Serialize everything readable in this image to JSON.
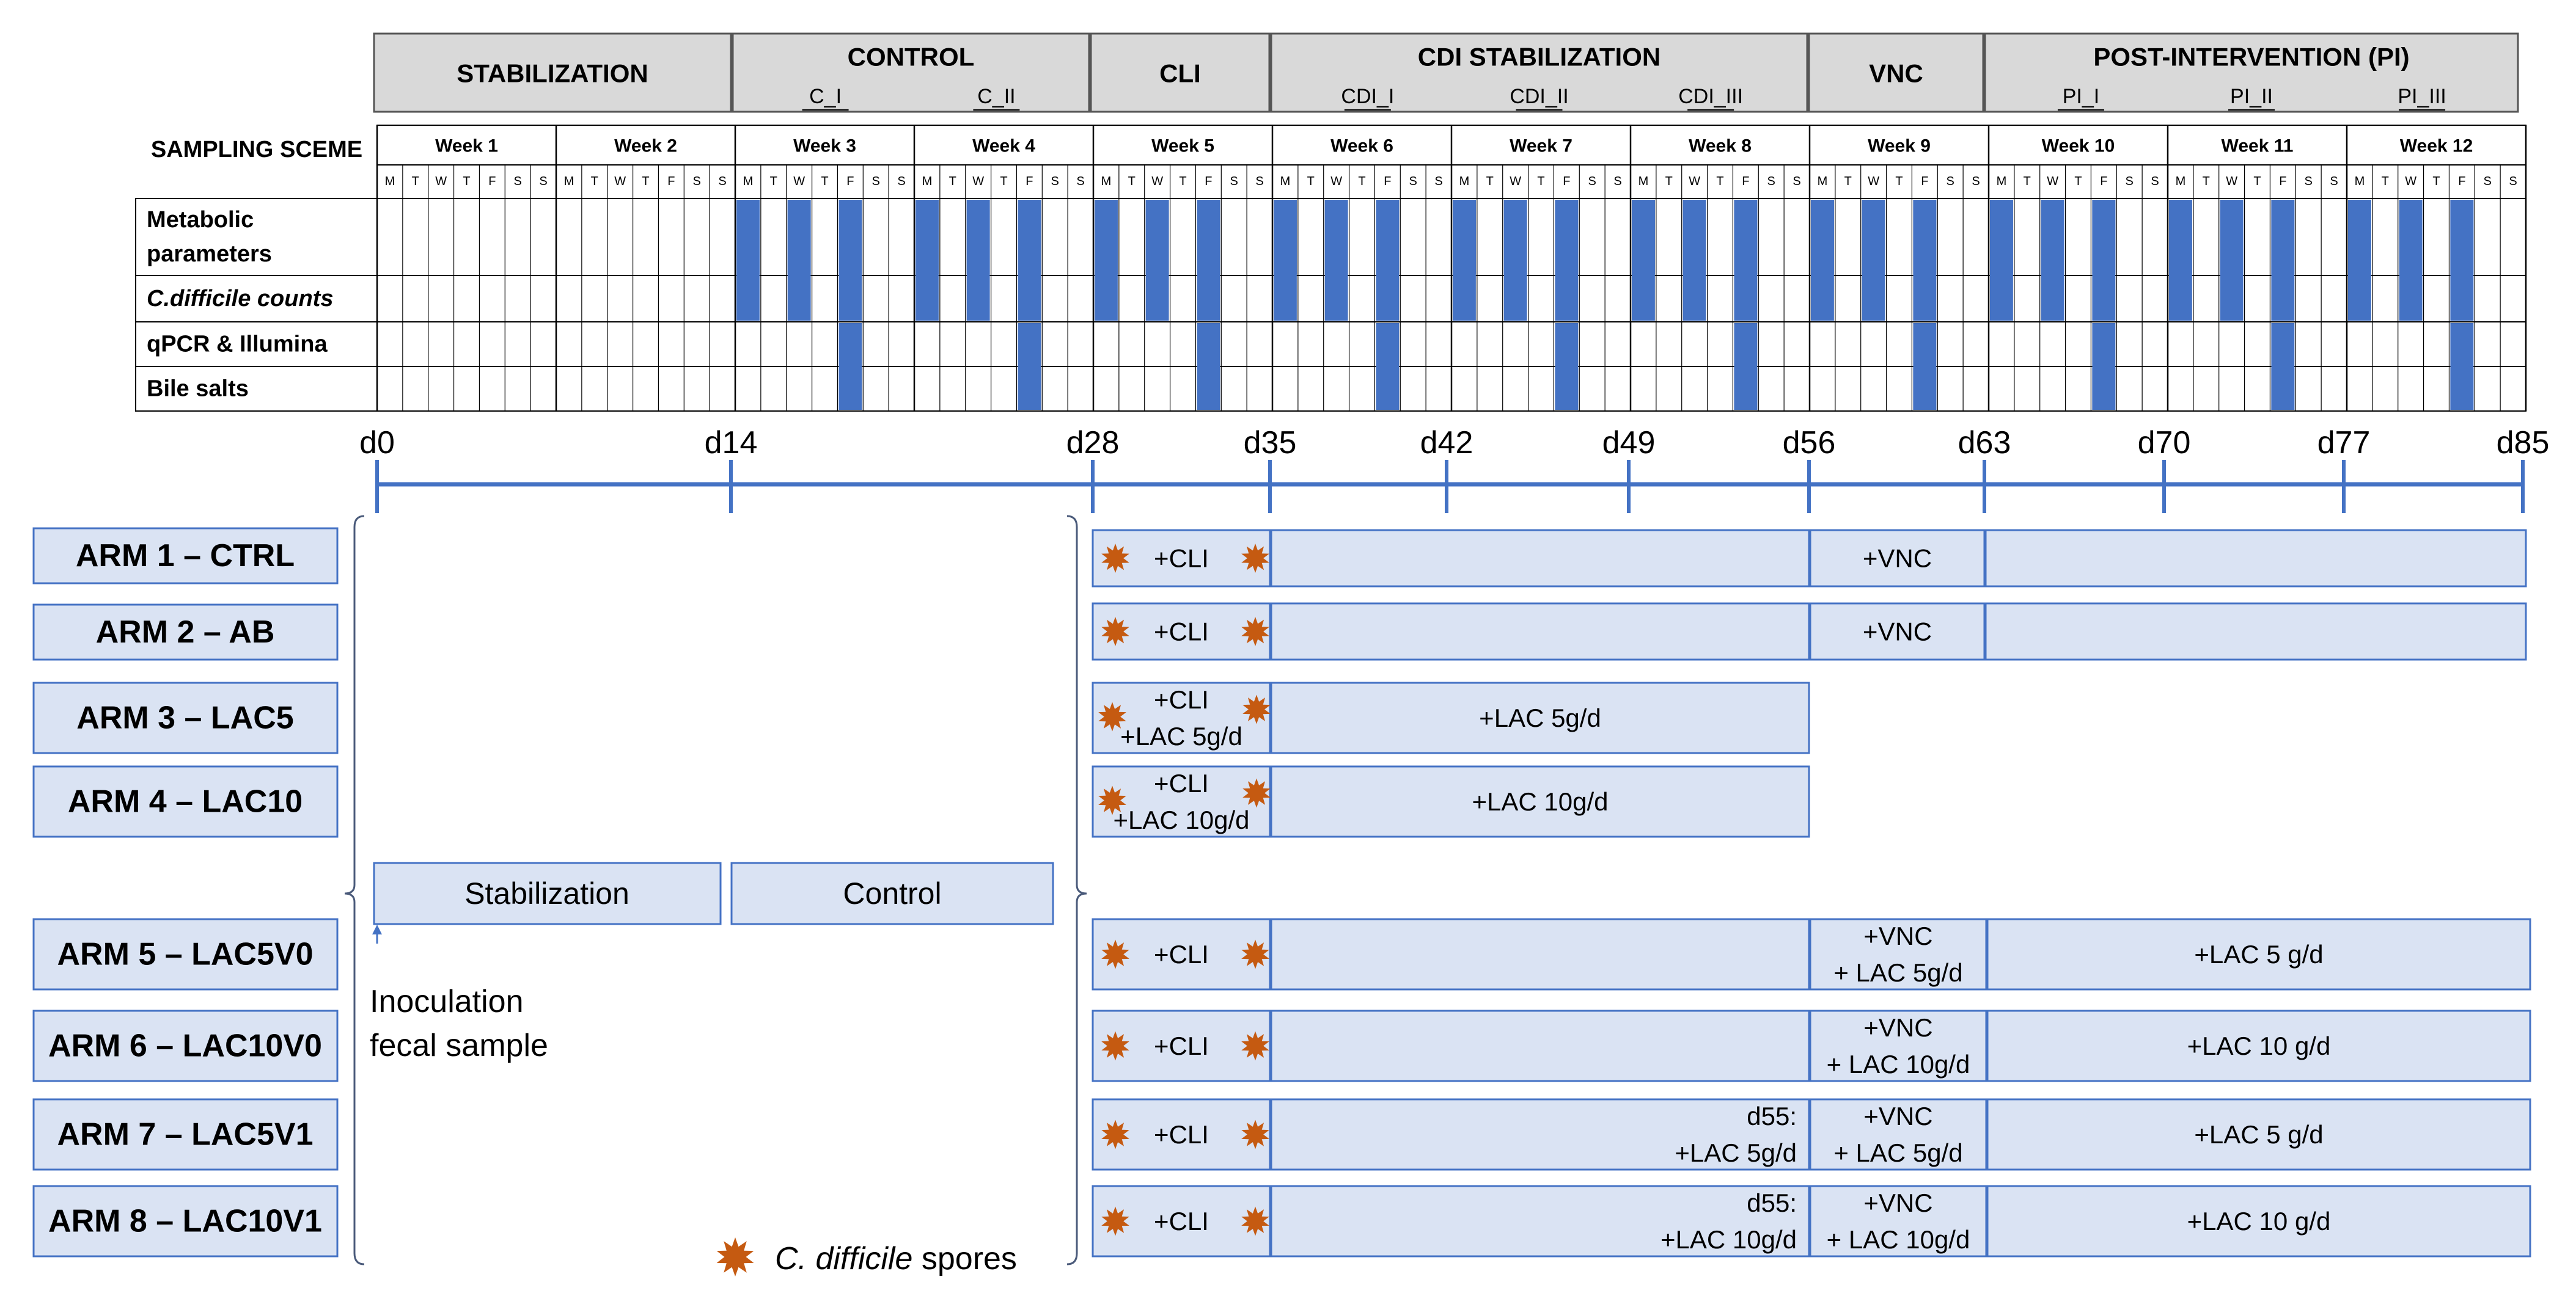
{
  "phases": [
    {
      "label": "STABILIZATION",
      "subs": []
    },
    {
      "label": "CONTROL",
      "subs": [
        "C_I",
        "C_II"
      ]
    },
    {
      "label": "CLI",
      "subs": []
    },
    {
      "label": "CDI STABILIZATION",
      "subs": [
        "CDI_I",
        "CDI_II",
        "CDI_III"
      ]
    },
    {
      "label": "VNC",
      "subs": []
    },
    {
      "label": "POST-INTERVENTION (PI)",
      "subs": [
        "PI_I",
        "PI_II",
        "PI_III"
      ]
    }
  ],
  "sampling_title": "SAMPLING SCEME",
  "weeks": [
    "Week 1",
    "Week 2",
    "Week 3",
    "Week 4",
    "Week 5",
    "Week 6",
    "Week 7",
    "Week 8",
    "Week 9",
    "Week 10",
    "Week 11",
    "Week 12"
  ],
  "days": [
    "M",
    "T",
    "W",
    "T",
    "F",
    "S",
    "S"
  ],
  "rows": [
    {
      "label_lines": [
        "Metabolic",
        "parameters"
      ],
      "italic": false
    },
    {
      "label_lines": [
        "C.difficile counts"
      ],
      "italic": true
    },
    {
      "label_lines": [
        "qPCR & Illumina"
      ],
      "italic": false
    },
    {
      "label_lines": [
        "Bile salts"
      ],
      "italic": false
    }
  ],
  "samples": {
    "metabolic": [
      15,
      17,
      19,
      22,
      24,
      26,
      29,
      31,
      33,
      36,
      38,
      40,
      43,
      45,
      47,
      50,
      52,
      54,
      57,
      59,
      61,
      64,
      66,
      68,
      71,
      73,
      75,
      78,
      80,
      82
    ],
    "cdiff": [
      15,
      17,
      19,
      22,
      24,
      26,
      29,
      31,
      33,
      36,
      38,
      40,
      43,
      45,
      47,
      50,
      52,
      54,
      57,
      59,
      61,
      64,
      66,
      68,
      71,
      73,
      75,
      78,
      80,
      82
    ],
    "qpcr": [
      19,
      26,
      33,
      40,
      47,
      54,
      61,
      68,
      75,
      82
    ],
    "bile": [
      19,
      26,
      33,
      40,
      47,
      54,
      61,
      68,
      75,
      82
    ]
  },
  "timeline": {
    "ticks": [
      "d0",
      "d14",
      "d28",
      "d35",
      "d42",
      "d49",
      "d56",
      "d63",
      "d70",
      "d77",
      "d85"
    ]
  },
  "arms": [
    {
      "label": "ARM 1 – CTRL",
      "cli": [
        "+CLI"
      ],
      "cdi": [],
      "vnc": [
        "+VNC"
      ],
      "pi": []
    },
    {
      "label": "ARM 2 – AB",
      "cli": [
        "+CLI"
      ],
      "cdi": [],
      "vnc": [
        "+VNC"
      ],
      "pi": []
    },
    {
      "label": "ARM 3 – LAC5",
      "cli": [
        "+CLI",
        "+LAC 5g/d"
      ],
      "cdi": [
        "+LAC 5g/d"
      ]
    },
    {
      "label": "ARM 4 – LAC10",
      "cli": [
        "+CLI",
        "+LAC 10g/d"
      ],
      "cdi": [
        "+LAC 10g/d"
      ]
    },
    {
      "label": "ARM 5 – LAC5V0",
      "cli": [
        "+CLI"
      ],
      "cdi": [],
      "vnc": [
        "+VNC",
        "+ LAC 5g/d"
      ],
      "pi": [
        "+LAC 5 g/d"
      ]
    },
    {
      "label": "ARM 6 – LAC10V0",
      "cli": [
        "+CLI"
      ],
      "cdi": [],
      "vnc": [
        "+VNC",
        "+ LAC 10g/d"
      ],
      "pi": [
        "+LAC 10 g/d"
      ]
    },
    {
      "label": "ARM 7 – LAC5V1",
      "cli": [
        "+CLI"
      ],
      "cdi": [
        "d55:",
        "+LAC 5g/d"
      ],
      "vnc": [
        "+VNC",
        "+ LAC 5g/d"
      ],
      "pi": [
        "+LAC 5 g/d"
      ]
    },
    {
      "label": "ARM 8 – LAC10V1",
      "cli": [
        "+CLI"
      ],
      "cdi": [
        "d55:",
        "+LAC 10g/d"
      ],
      "vnc": [
        "+VNC",
        "+ LAC 10g/d"
      ],
      "pi": [
        "+LAC 10 g/d"
      ]
    }
  ],
  "common": {
    "stabilization": "Stabilization",
    "control": "Control"
  },
  "inoculation": [
    "Inoculation",
    "fecal sample"
  ],
  "legend": {
    "italic": "C. difficile",
    "rest": " spores"
  },
  "colors": {
    "header_fill": "#d9d9d9",
    "sample_fill": "#4472c4",
    "box_fill": "#dae3f3",
    "box_stroke": "#4472c4",
    "timeline": "#4472c4",
    "spore": "#c55a11"
  }
}
